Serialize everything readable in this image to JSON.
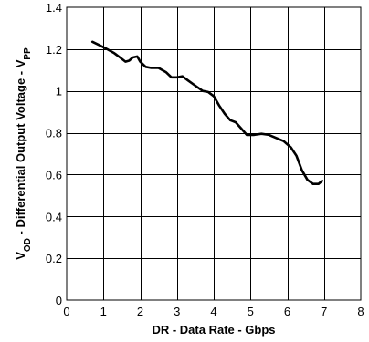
{
  "chart_data": {
    "type": "line",
    "xlabel": "DR - Data Rate - Gbps",
    "ylabel": {
      "parts": [
        {
          "text": "V",
          "sub": false
        },
        {
          "text": "OD",
          "sub": true
        },
        {
          "text": " - Differential Output Voltage - V",
          "sub": false
        },
        {
          "text": "PP",
          "sub": true
        }
      ]
    },
    "xlim": [
      0,
      8
    ],
    "ylim": [
      0,
      1.4
    ],
    "xticks": [
      {
        "value": 0,
        "label": "0"
      },
      {
        "value": 1,
        "label": "1"
      },
      {
        "value": 2,
        "label": "2"
      },
      {
        "value": 3,
        "label": "3"
      },
      {
        "value": 4,
        "label": "4"
      },
      {
        "value": 5,
        "label": "5"
      },
      {
        "value": 6,
        "label": "6"
      },
      {
        "value": 7,
        "label": "7"
      },
      {
        "value": 8,
        "label": "8"
      }
    ],
    "yticks": [
      {
        "value": 0,
        "label": "0"
      },
      {
        "value": 0.2,
        "label": "0.2"
      },
      {
        "value": 0.4,
        "label": "0.4"
      },
      {
        "value": 0.6,
        "label": "0.6"
      },
      {
        "value": 0.8,
        "label": "0.8"
      },
      {
        "value": 1.0,
        "label": "1"
      },
      {
        "value": 1.2,
        "label": "1.2"
      },
      {
        "value": 1.4,
        "label": "1.4"
      }
    ],
    "grid": true,
    "legend": "none",
    "line_color": "#000000",
    "series": [
      {
        "x": [
          0.7,
          0.9,
          1.1,
          1.3,
          1.45,
          1.6,
          1.7,
          1.8,
          1.92,
          2.0,
          2.15,
          2.3,
          2.5,
          2.7,
          2.85,
          3.0,
          3.15,
          3.3,
          3.5,
          3.7,
          3.85,
          4.0,
          4.15,
          4.3,
          4.45,
          4.6,
          4.75,
          4.9,
          5.1,
          5.3,
          5.5,
          5.7,
          5.9,
          6.1,
          6.25,
          6.4,
          6.55,
          6.7,
          6.85,
          6.95
        ],
        "y": [
          1.235,
          1.218,
          1.2,
          1.18,
          1.16,
          1.14,
          1.145,
          1.16,
          1.165,
          1.14,
          1.115,
          1.11,
          1.11,
          1.09,
          1.065,
          1.065,
          1.07,
          1.05,
          1.025,
          1.0,
          0.995,
          0.975,
          0.93,
          0.89,
          0.86,
          0.85,
          0.82,
          0.79,
          0.79,
          0.795,
          0.79,
          0.775,
          0.76,
          0.73,
          0.69,
          0.62,
          0.575,
          0.555,
          0.555,
          0.57
        ]
      }
    ]
  }
}
